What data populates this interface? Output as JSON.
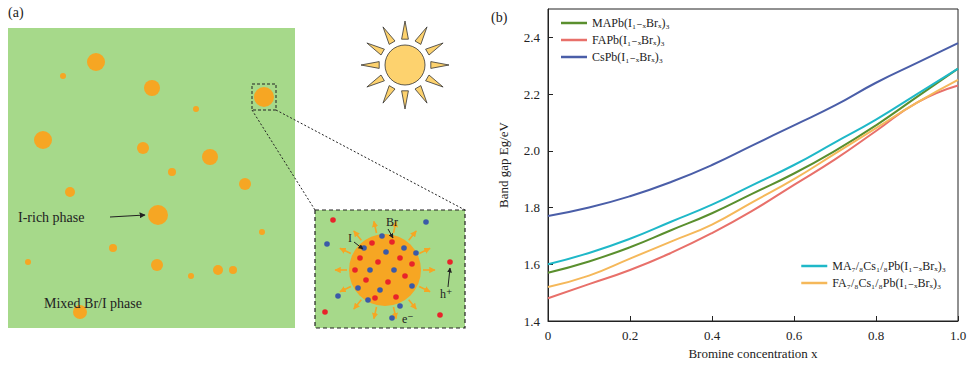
{
  "diagram": {
    "label": "(a)",
    "phase_label": "I-rich phase",
    "matrix_label": "Mixed Br/I phase",
    "inset": {
      "bromine": "Br",
      "iodine": "I",
      "hole": "h⁺",
      "electron": "e⁻"
    }
  },
  "chart_data": {
    "type": "line",
    "title": "(b)",
    "x_label": "Bromine concentration x",
    "y_label": "Band gap Eg/eV",
    "xlim": [
      0,
      1
    ],
    "xticks": [
      0,
      0.2,
      0.4,
      0.6,
      0.8,
      {
        "value": 1,
        "label": "1.0"
      }
    ],
    "ylim": [
      1.4,
      2.5
    ],
    "yticks": [
      1.4,
      1.6,
      1.8,
      {
        "value": 2,
        "label": "2.0"
      },
      2.2,
      2.4
    ],
    "grid": false,
    "x": [
      0,
      0.1,
      0.2,
      0.3,
      0.4,
      0.5,
      0.6,
      0.7,
      0.8,
      0.9,
      1
    ],
    "series": [
      {
        "name": "MAPb(I₁₋ₓBrₓ)₃",
        "color": "#5a8f2e",
        "legend": "upper left",
        "values": [
          1.57,
          1.61,
          1.66,
          1.72,
          1.78,
          1.85,
          1.92,
          2.0,
          2.09,
          2.19,
          2.29
        ]
      },
      {
        "name": "FAPb(I₁₋ₓBrₓ)₃",
        "color": "#e8706a",
        "legend": "upper left",
        "values": [
          1.48,
          1.53,
          1.58,
          1.64,
          1.71,
          1.79,
          1.88,
          1.97,
          2.07,
          2.17,
          2.23
        ]
      },
      {
        "name": "CsPb(I₁₋ₓBrₓ)₃",
        "color": "#4a5ea8",
        "legend": "upper left",
        "values": [
          1.77,
          1.8,
          1.84,
          1.89,
          1.95,
          2.02,
          2.09,
          2.16,
          2.24,
          2.31,
          2.38
        ]
      },
      {
        "name": "MA₇/₈Cs₁/₈Pb(I₁₋ₓBrₓ)₃",
        "color": "#1fb8c8",
        "legend": "lower right",
        "values": [
          1.6,
          1.64,
          1.69,
          1.75,
          1.81,
          1.88,
          1.95,
          2.03,
          2.11,
          2.2,
          2.29
        ]
      },
      {
        "name": "FA₇/₈Cs₁/₈Pb(I₁₋ₓBrₓ)₃",
        "color": "#f5b85a",
        "legend": "lower right",
        "values": [
          1.52,
          1.56,
          1.62,
          1.68,
          1.74,
          1.82,
          1.9,
          1.99,
          2.08,
          2.17,
          2.25
        ]
      }
    ]
  }
}
